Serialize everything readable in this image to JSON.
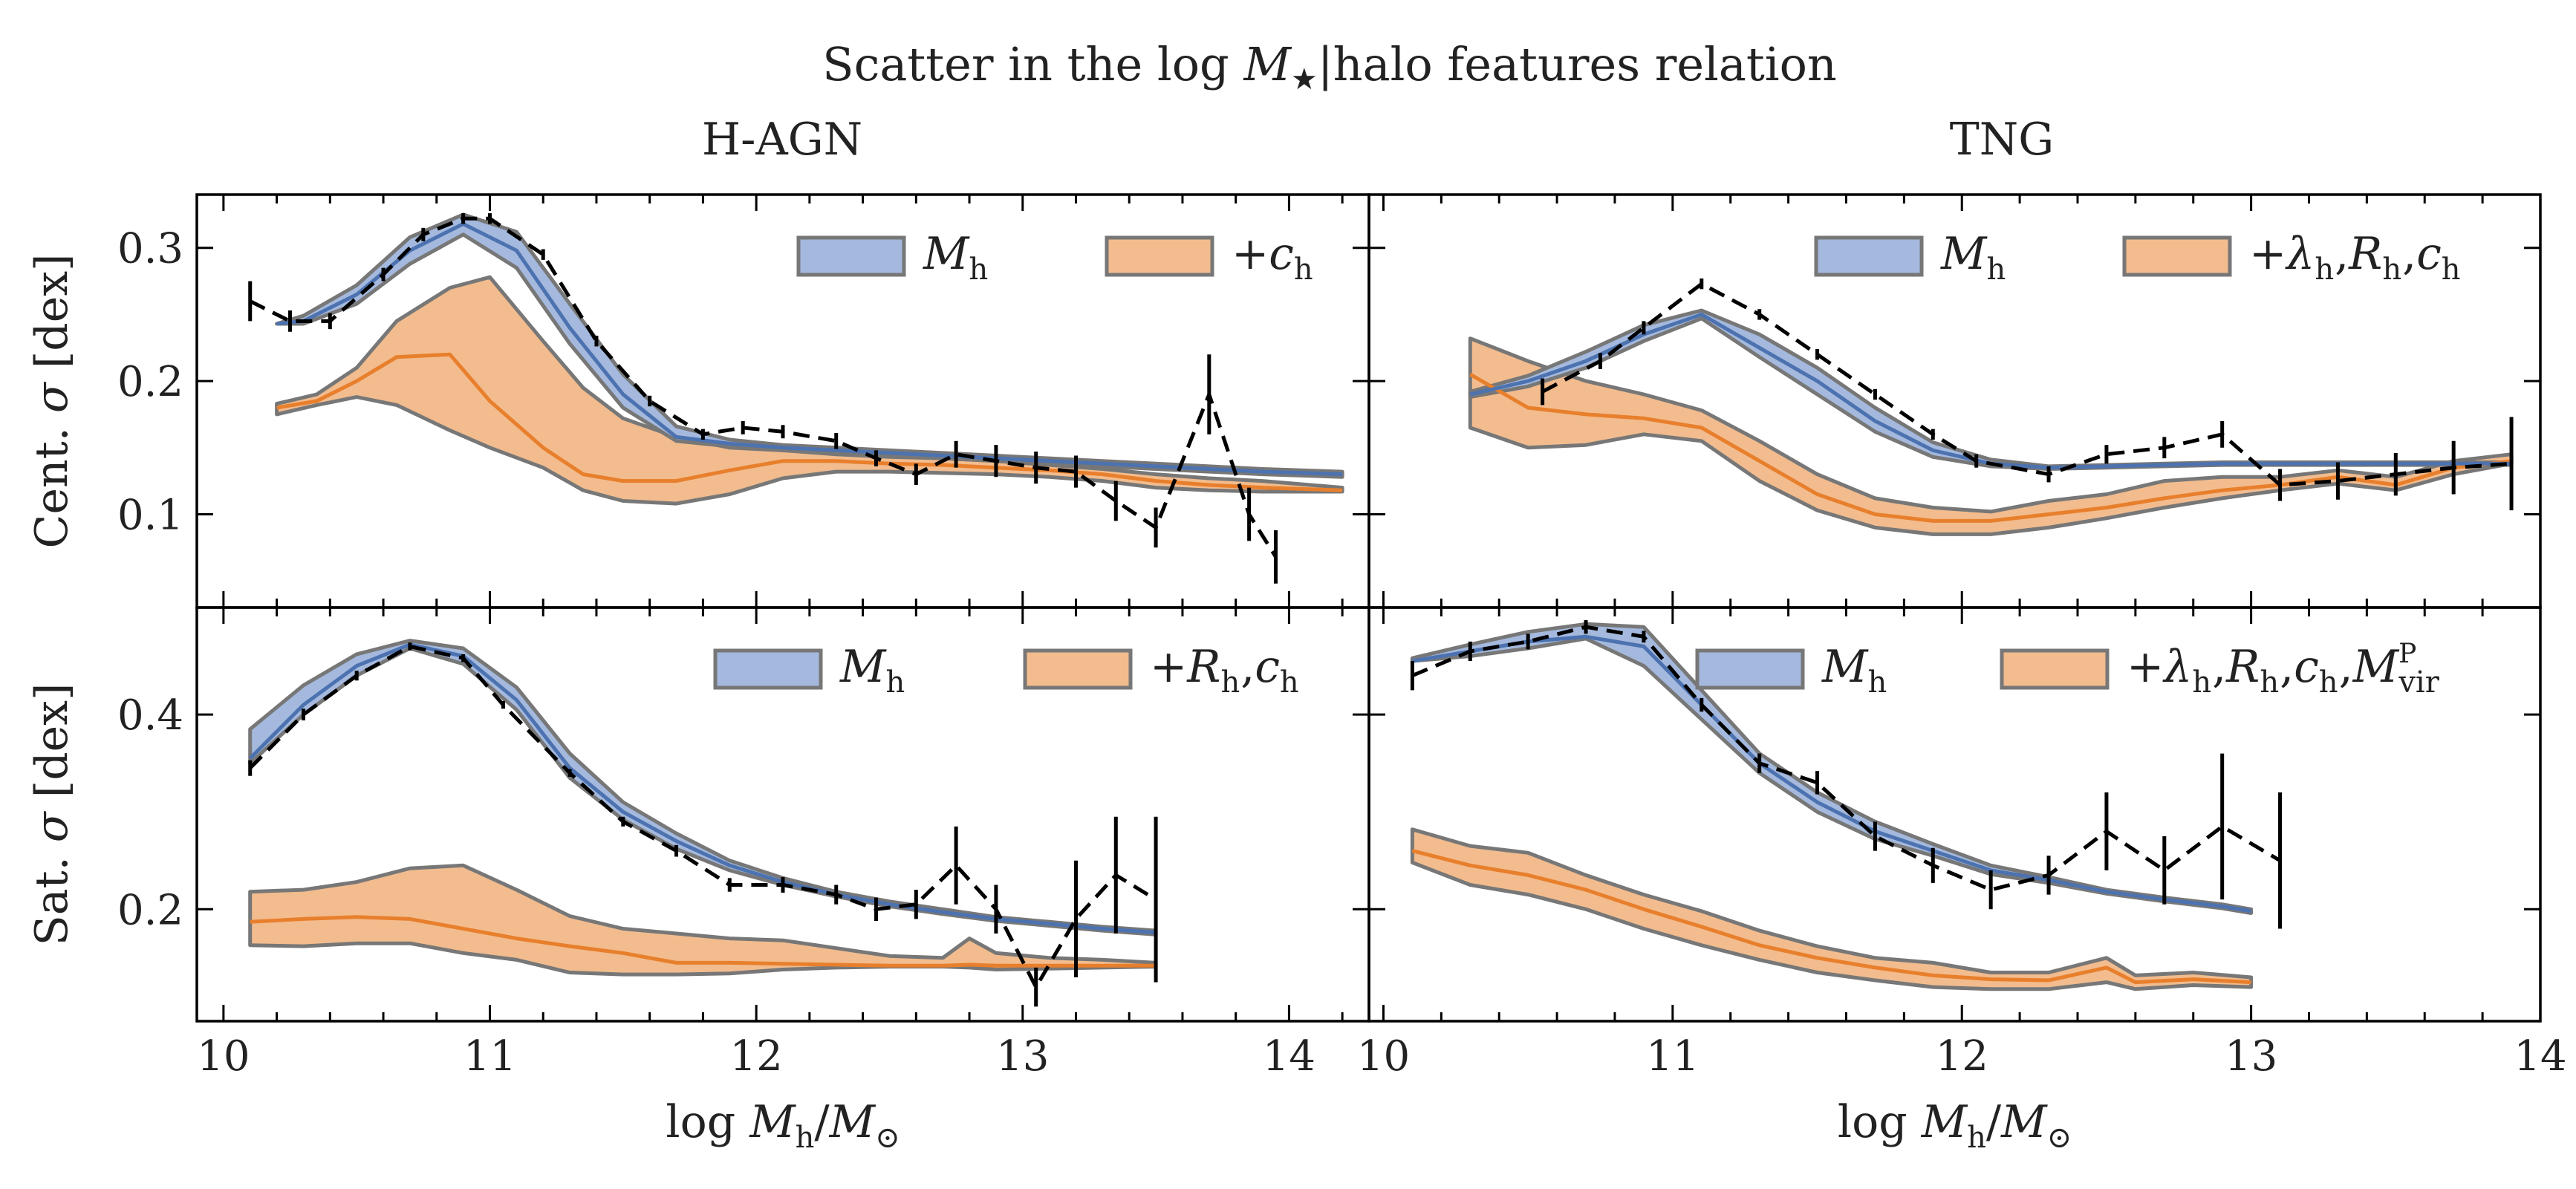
{
  "figure": {
    "title": "Scatter in the log M★|halo features relation",
    "xlabel": "log Mh/M⊙",
    "colors": {
      "blue_fill": "#a4b9dd",
      "blue_line": "#4c72b0",
      "orange_fill": "#f2bc8e",
      "orange_line": "#e87f2c",
      "band_edge": "#777777",
      "sim": "#000000"
    }
  },
  "chart_data": [
    {
      "id": "hagn_cent",
      "type": "line",
      "sim": "H-AGN",
      "population": "Cent.",
      "column_title": "H-AGN",
      "ylabel": "Cent. σ [dex]",
      "xlim": [
        9.9,
        14.3
      ],
      "ylim": [
        0.03,
        0.34
      ],
      "xticks": [
        "10",
        "11",
        "12",
        "13",
        "14"
      ],
      "yticks": [
        "0.1",
        "0.2",
        "0.3"
      ],
      "legend": {
        "position": "top-right",
        "items": [
          "Mh",
          "+ch"
        ]
      },
      "mh": {
        "x": [
          10.2,
          10.3,
          10.5,
          10.7,
          10.9,
          11.1,
          11.3,
          11.5,
          11.7,
          11.9,
          12.1,
          12.3,
          12.5,
          12.7,
          12.9,
          13.1,
          13.3,
          13.5,
          13.7,
          13.9,
          14.2
        ],
        "y": [
          0.243,
          0.245,
          0.265,
          0.298,
          0.318,
          0.298,
          0.24,
          0.19,
          0.158,
          0.153,
          0.15,
          0.148,
          0.146,
          0.144,
          0.142,
          0.14,
          0.138,
          0.136,
          0.134,
          0.132,
          0.13
        ],
        "lo": [
          0.243,
          0.243,
          0.258,
          0.288,
          0.31,
          0.285,
          0.228,
          0.18,
          0.155,
          0.151,
          0.148,
          0.146,
          0.144,
          0.142,
          0.14,
          0.138,
          0.136,
          0.134,
          0.132,
          0.13,
          0.128
        ],
        "hi": [
          0.243,
          0.249,
          0.272,
          0.308,
          0.325,
          0.312,
          0.258,
          0.205,
          0.166,
          0.156,
          0.152,
          0.15,
          0.148,
          0.146,
          0.144,
          0.142,
          0.14,
          0.138,
          0.136,
          0.134,
          0.132
        ]
      },
      "plus": {
        "x": [
          10.2,
          10.35,
          10.5,
          10.65,
          10.85,
          11.0,
          11.2,
          11.35,
          11.5,
          11.7,
          11.9,
          12.1,
          12.3,
          12.5,
          12.7,
          12.9,
          13.1,
          13.3,
          13.5,
          13.7,
          13.9,
          14.2
        ],
        "y": [
          0.18,
          0.185,
          0.2,
          0.218,
          0.22,
          0.185,
          0.15,
          0.13,
          0.125,
          0.125,
          0.133,
          0.14,
          0.14,
          0.138,
          0.137,
          0.135,
          0.133,
          0.13,
          0.125,
          0.122,
          0.12,
          0.118
        ],
        "lo": [
          0.175,
          0.182,
          0.188,
          0.182,
          0.163,
          0.15,
          0.135,
          0.118,
          0.11,
          0.108,
          0.115,
          0.127,
          0.132,
          0.132,
          0.131,
          0.13,
          0.128,
          0.125,
          0.12,
          0.118,
          0.117,
          0.117
        ],
        "hi": [
          0.183,
          0.19,
          0.21,
          0.245,
          0.27,
          0.278,
          0.23,
          0.195,
          0.172,
          0.158,
          0.15,
          0.148,
          0.145,
          0.143,
          0.142,
          0.14,
          0.137,
          0.134,
          0.13,
          0.127,
          0.125,
          0.12
        ]
      },
      "sim_data": {
        "x": [
          10.1,
          10.25,
          10.4,
          10.6,
          10.75,
          10.9,
          11.0,
          11.2,
          11.4,
          11.6,
          11.8,
          11.95,
          12.1,
          12.3,
          12.45,
          12.6,
          12.75,
          12.9,
          13.05,
          13.2,
          13.35,
          13.5,
          13.7,
          13.85,
          13.95
        ],
        "y": [
          0.26,
          0.245,
          0.245,
          0.28,
          0.31,
          0.322,
          0.322,
          0.295,
          0.23,
          0.185,
          0.16,
          0.165,
          0.162,
          0.155,
          0.142,
          0.13,
          0.145,
          0.14,
          0.135,
          0.132,
          0.11,
          0.09,
          0.19,
          0.1,
          0.068
        ],
        "err": [
          0.015,
          0.008,
          0.006,
          0.005,
          0.005,
          0.004,
          0.004,
          0.004,
          0.004,
          0.004,
          0.004,
          0.005,
          0.005,
          0.006,
          0.006,
          0.008,
          0.01,
          0.012,
          0.012,
          0.012,
          0.015,
          0.015,
          0.03,
          0.02,
          0.02
        ]
      }
    },
    {
      "id": "tng_cent",
      "type": "line",
      "sim": "TNG",
      "population": "Cent.",
      "column_title": "TNG",
      "ylabel": "",
      "xlim": [
        9.95,
        14.0
      ],
      "ylim": [
        0.03,
        0.34
      ],
      "xticks": [
        "10",
        "11",
        "12",
        "13",
        "14"
      ],
      "yticks": [],
      "legend": {
        "position": "top-right",
        "items": [
          "Mh",
          "+λh,Rh,ch"
        ]
      },
      "mh": {
        "x": [
          10.3,
          10.5,
          10.7,
          10.9,
          11.1,
          11.3,
          11.5,
          11.7,
          11.9,
          12.1,
          12.3,
          12.5,
          12.7,
          12.9,
          13.1,
          13.3,
          13.5,
          13.7,
          13.9
        ],
        "y": [
          0.19,
          0.2,
          0.215,
          0.235,
          0.25,
          0.225,
          0.2,
          0.17,
          0.148,
          0.138,
          0.135,
          0.136,
          0.137,
          0.138,
          0.138,
          0.138,
          0.138,
          0.138,
          0.138
        ],
        "lo": [
          0.188,
          0.196,
          0.21,
          0.23,
          0.247,
          0.218,
          0.19,
          0.162,
          0.143,
          0.136,
          0.134,
          0.135,
          0.136,
          0.137,
          0.137,
          0.137,
          0.137,
          0.137,
          0.137
        ],
        "hi": [
          0.192,
          0.204,
          0.222,
          0.242,
          0.253,
          0.235,
          0.21,
          0.18,
          0.154,
          0.141,
          0.136,
          0.137,
          0.138,
          0.139,
          0.139,
          0.139,
          0.139,
          0.139,
          0.139
        ]
      },
      "plus": {
        "x": [
          10.3,
          10.5,
          10.7,
          10.9,
          11.1,
          11.3,
          11.5,
          11.7,
          11.9,
          12.1,
          12.3,
          12.5,
          12.7,
          12.9,
          13.1,
          13.3,
          13.5,
          13.7,
          13.9
        ],
        "y": [
          0.205,
          0.18,
          0.175,
          0.172,
          0.165,
          0.14,
          0.115,
          0.1,
          0.095,
          0.095,
          0.1,
          0.105,
          0.112,
          0.118,
          0.122,
          0.128,
          0.122,
          0.135,
          0.14
        ],
        "lo": [
          0.165,
          0.15,
          0.152,
          0.16,
          0.155,
          0.125,
          0.103,
          0.09,
          0.085,
          0.085,
          0.09,
          0.097,
          0.105,
          0.112,
          0.118,
          0.123,
          0.118,
          0.13,
          0.138
        ],
        "hi": [
          0.232,
          0.215,
          0.2,
          0.19,
          0.178,
          0.155,
          0.13,
          0.112,
          0.105,
          0.102,
          0.11,
          0.115,
          0.125,
          0.128,
          0.128,
          0.133,
          0.128,
          0.14,
          0.145
        ]
      },
      "sim_data": {
        "x": [
          10.55,
          10.75,
          10.9,
          11.1,
          11.3,
          11.5,
          11.7,
          11.9,
          12.05,
          12.3,
          12.5,
          12.7,
          12.9,
          13.1,
          13.3,
          13.5,
          13.7,
          13.9
        ],
        "y": [
          0.192,
          0.215,
          0.24,
          0.273,
          0.25,
          0.22,
          0.19,
          0.16,
          0.14,
          0.13,
          0.145,
          0.15,
          0.16,
          0.122,
          0.125,
          0.13,
          0.135,
          0.138
        ],
        "err": [
          0.01,
          0.006,
          0.005,
          0.004,
          0.004,
          0.004,
          0.004,
          0.004,
          0.005,
          0.006,
          0.007,
          0.008,
          0.01,
          0.012,
          0.014,
          0.016,
          0.02,
          0.035
        ]
      }
    },
    {
      "id": "hagn_sat",
      "type": "line",
      "sim": "H-AGN",
      "population": "Sat.",
      "column_title": "",
      "ylabel": "Sat. σ [dex]",
      "xlim": [
        9.9,
        14.3
      ],
      "ylim": [
        0.085,
        0.51
      ],
      "xticks": [
        "10",
        "11",
        "12",
        "13",
        "14"
      ],
      "yticks": [
        "0.2",
        "0.4"
      ],
      "legend": {
        "position": "top-right",
        "items": [
          "Mh",
          "+Rh,ch"
        ]
      },
      "mh": {
        "x": [
          10.1,
          10.3,
          10.5,
          10.7,
          10.9,
          11.1,
          11.3,
          11.5,
          11.7,
          11.9,
          12.1,
          12.3,
          12.5,
          12.7,
          12.9,
          13.1,
          13.3,
          13.5
        ],
        "y": [
          0.355,
          0.41,
          0.45,
          0.472,
          0.46,
          0.415,
          0.345,
          0.3,
          0.27,
          0.245,
          0.228,
          0.215,
          0.205,
          0.197,
          0.19,
          0.185,
          0.18,
          0.176
        ],
        "lo": [
          0.35,
          0.4,
          0.44,
          0.468,
          0.452,
          0.405,
          0.335,
          0.292,
          0.262,
          0.24,
          0.225,
          0.213,
          0.203,
          0.195,
          0.188,
          0.183,
          0.178,
          0.174
        ],
        "hi": [
          0.385,
          0.43,
          0.462,
          0.476,
          0.468,
          0.428,
          0.36,
          0.31,
          0.278,
          0.25,
          0.232,
          0.218,
          0.208,
          0.2,
          0.192,
          0.187,
          0.182,
          0.178
        ]
      },
      "plus": {
        "x": [
          10.1,
          10.3,
          10.5,
          10.7,
          10.9,
          11.1,
          11.3,
          11.5,
          11.7,
          11.9,
          12.1,
          12.3,
          12.5,
          12.7,
          12.8,
          12.9,
          13.1,
          13.3,
          13.5
        ],
        "y": [
          0.187,
          0.19,
          0.192,
          0.19,
          0.18,
          0.17,
          0.162,
          0.155,
          0.145,
          0.145,
          0.144,
          0.143,
          0.142,
          0.142,
          0.143,
          0.142,
          0.142,
          0.142,
          0.142
        ],
        "lo": [
          0.163,
          0.162,
          0.165,
          0.165,
          0.155,
          0.148,
          0.135,
          0.133,
          0.133,
          0.134,
          0.138,
          0.14,
          0.141,
          0.141,
          0.14,
          0.138,
          0.139,
          0.14,
          0.141
        ],
        "hi": [
          0.218,
          0.22,
          0.228,
          0.242,
          0.245,
          0.22,
          0.193,
          0.18,
          0.175,
          0.17,
          0.168,
          0.16,
          0.152,
          0.15,
          0.17,
          0.155,
          0.15,
          0.148,
          0.145
        ]
      },
      "sim_data": {
        "x": [
          10.1,
          10.3,
          10.5,
          10.7,
          10.9,
          11.05,
          11.3,
          11.5,
          11.7,
          11.9,
          12.1,
          12.3,
          12.45,
          12.6,
          12.75,
          12.9,
          13.05,
          13.2,
          13.35,
          13.5
        ],
        "y": [
          0.345,
          0.4,
          0.44,
          0.47,
          0.458,
          0.41,
          0.34,
          0.29,
          0.26,
          0.225,
          0.225,
          0.215,
          0.2,
          0.205,
          0.245,
          0.2,
          0.12,
          0.19,
          0.235,
          0.21
        ],
        "err": [
          0.008,
          0.006,
          0.005,
          0.004,
          0.004,
          0.004,
          0.004,
          0.005,
          0.006,
          0.007,
          0.008,
          0.01,
          0.012,
          0.015,
          0.04,
          0.025,
          0.02,
          0.06,
          0.06,
          0.085
        ]
      }
    },
    {
      "id": "tng_sat",
      "type": "line",
      "sim": "TNG",
      "population": "Sat.",
      "column_title": "",
      "ylabel": "",
      "xlim": [
        9.95,
        14.0
      ],
      "ylim": [
        0.085,
        0.51
      ],
      "xticks": [
        "10",
        "11",
        "12",
        "13",
        "14"
      ],
      "yticks": [],
      "legend": {
        "position": "top-right",
        "items": [
          "Mh",
          "+λh,Rh,ch,MPvir"
        ]
      },
      "mh": {
        "x": [
          10.1,
          10.3,
          10.5,
          10.7,
          10.9,
          11.1,
          11.3,
          11.5,
          11.7,
          11.9,
          12.1,
          12.3,
          12.5,
          12.7,
          12.9,
          13.0
        ],
        "y": [
          0.455,
          0.465,
          0.475,
          0.48,
          0.47,
          0.41,
          0.35,
          0.31,
          0.28,
          0.26,
          0.24,
          0.23,
          0.218,
          0.21,
          0.203,
          0.198
        ],
        "lo": [
          0.455,
          0.46,
          0.468,
          0.478,
          0.45,
          0.395,
          0.34,
          0.3,
          0.272,
          0.255,
          0.236,
          0.227,
          0.216,
          0.208,
          0.201,
          0.196
        ],
        "hi": [
          0.458,
          0.472,
          0.485,
          0.493,
          0.49,
          0.425,
          0.36,
          0.32,
          0.29,
          0.267,
          0.245,
          0.233,
          0.22,
          0.212,
          0.205,
          0.2
        ]
      },
      "plus": {
        "x": [
          10.1,
          10.3,
          10.5,
          10.7,
          10.9,
          11.1,
          11.3,
          11.5,
          11.7,
          11.9,
          12.1,
          12.3,
          12.5,
          12.6,
          12.8,
          13.0
        ],
        "y": [
          0.26,
          0.245,
          0.235,
          0.22,
          0.2,
          0.182,
          0.163,
          0.15,
          0.14,
          0.132,
          0.128,
          0.127,
          0.14,
          0.125,
          0.128,
          0.125
        ],
        "lo": [
          0.248,
          0.225,
          0.215,
          0.2,
          0.18,
          0.163,
          0.148,
          0.135,
          0.127,
          0.12,
          0.118,
          0.118,
          0.125,
          0.118,
          0.122,
          0.12
        ],
        "hi": [
          0.282,
          0.265,
          0.258,
          0.235,
          0.215,
          0.198,
          0.178,
          0.162,
          0.15,
          0.145,
          0.135,
          0.135,
          0.15,
          0.132,
          0.135,
          0.13
        ]
      },
      "sim_data": {
        "x": [
          10.1,
          10.3,
          10.5,
          10.7,
          10.9,
          11.1,
          11.3,
          11.5,
          11.7,
          11.9,
          12.1,
          12.3,
          12.5,
          12.7,
          12.9,
          13.1
        ],
        "y": [
          0.44,
          0.465,
          0.475,
          0.49,
          0.48,
          0.41,
          0.35,
          0.33,
          0.275,
          0.245,
          0.22,
          0.235,
          0.28,
          0.24,
          0.285,
          0.25
        ],
        "err": [
          0.015,
          0.01,
          0.008,
          0.007,
          0.006,
          0.007,
          0.01,
          0.012,
          0.015,
          0.018,
          0.02,
          0.02,
          0.04,
          0.035,
          0.075,
          0.07
        ]
      }
    }
  ]
}
